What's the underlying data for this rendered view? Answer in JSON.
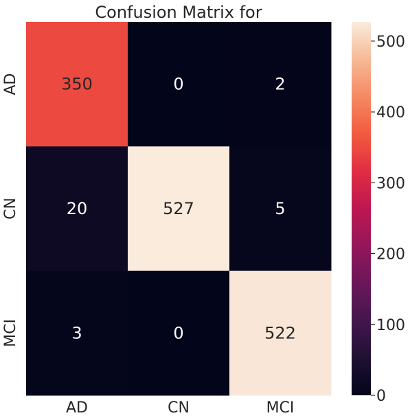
{
  "chart_data": {
    "type": "heatmap",
    "title": "Confusion Matrix for",
    "x_categories": [
      "AD",
      "CN",
      "MCI"
    ],
    "y_categories": [
      "AD",
      "CN",
      "MCI"
    ],
    "values": [
      [
        350,
        0,
        2
      ],
      [
        20,
        527,
        5
      ],
      [
        3,
        0,
        522
      ]
    ],
    "colorbar": {
      "min": 0,
      "max": 527,
      "ticks": [
        0,
        100,
        200,
        300,
        400,
        500
      ],
      "tick_labels": [
        "0",
        "100",
        "200",
        "300",
        "400",
        "500"
      ],
      "colormap": "rocket",
      "placement": "right"
    },
    "xlabel": "",
    "ylabel": "",
    "annotation_colors": {
      "on_dark": "#ffffff",
      "on_light": "#262626"
    }
  }
}
